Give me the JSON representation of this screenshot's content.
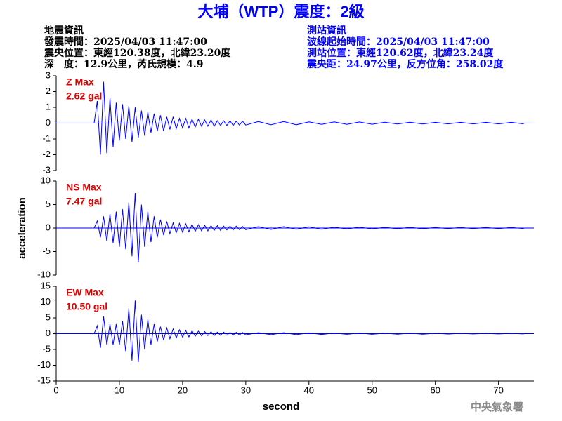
{
  "header": {
    "title": "大埔（WTP）震度：2級",
    "left": [
      "地震資訊",
      "發震時間：2025/04/03 11:47:00",
      "震央位置：東經120.38度，北緯23.20度",
      "深　度：12.9公里，芮氏規模：4.9"
    ],
    "right": [
      "測站資訊",
      "波線起始時間：2025/04/03 11:47:00",
      "測站位置：東經120.62度，北緯23.24度",
      "震央距：24.97公里，反方位角：258.02度"
    ],
    "footer": "中央氣象署"
  },
  "chart_data": [
    {
      "type": "line",
      "annotations": [
        "Z Max",
        "2.62 gal"
      ],
      "x": [
        0,
        6,
        6.5,
        7,
        7.5,
        8,
        8.5,
        9,
        9.5,
        10,
        10.5,
        11,
        11.5,
        12,
        12.5,
        13,
        13.5,
        14,
        14.5,
        15,
        15.5,
        16,
        16.5,
        17,
        17.5,
        18,
        18.5,
        19,
        19.5,
        20,
        20.5,
        21,
        21.5,
        22,
        22.5,
        23,
        23.5,
        24,
        24.5,
        25,
        25.5,
        26,
        26.5,
        27,
        27.5,
        28,
        28.5,
        29,
        29.5,
        30,
        32,
        34,
        36,
        38,
        40,
        42,
        44,
        46,
        48,
        50,
        52,
        54,
        56,
        58,
        60,
        62,
        64,
        66,
        68,
        70,
        72,
        74
      ],
      "series": [
        {
          "color": "#0000ff",
          "values": [
            0,
            0,
            1.4,
            -2.0,
            2.62,
            -1.9,
            1.6,
            -1.5,
            1.3,
            -1.1,
            1.2,
            -1.0,
            1.1,
            -1.2,
            1.0,
            -0.9,
            0.8,
            -0.8,
            0.7,
            -0.6,
            0.6,
            -0.5,
            0.5,
            -0.5,
            0.4,
            -0.4,
            0.4,
            -0.35,
            0.3,
            -0.3,
            0.3,
            -0.3,
            0.25,
            -0.25,
            0.25,
            -0.2,
            0.2,
            -0.2,
            0.2,
            -0.2,
            0.15,
            -0.15,
            0.15,
            -0.15,
            0.15,
            -0.15,
            0.12,
            -0.12,
            0.12,
            -0.12,
            0.1,
            -0.1,
            0.1,
            -0.1,
            0.08,
            -0.08,
            0.08,
            -0.08,
            0.07,
            -0.07,
            0.06,
            -0.06,
            0.06,
            -0.06,
            0.05,
            -0.05,
            0.05,
            -0.05,
            0.05,
            -0.05,
            0.05,
            -0.05
          ]
        }
      ],
      "xlim": [
        0,
        75.6
      ],
      "ylim": [
        -3,
        3
      ],
      "yticks": [
        -3,
        -2,
        -1,
        0,
        1,
        2,
        3
      ]
    },
    {
      "type": "line",
      "annotations": [
        "NS Max",
        "7.47 gal"
      ],
      "ylabel": "acceleration",
      "x": [
        0,
        6,
        6.5,
        7,
        7.5,
        8,
        8.5,
        9,
        9.5,
        10,
        10.5,
        11,
        11.5,
        12,
        12.5,
        13,
        13.5,
        14,
        14.5,
        15,
        15.5,
        16,
        16.5,
        17,
        17.5,
        18,
        18.5,
        19,
        19.5,
        20,
        20.5,
        21,
        21.5,
        22,
        22.5,
        23,
        23.5,
        24,
        24.5,
        25,
        25.5,
        26,
        26.5,
        27,
        27.5,
        28,
        28.5,
        29,
        29.5,
        30,
        32,
        34,
        36,
        38,
        40,
        42,
        44,
        46,
        48,
        50,
        52,
        54,
        56,
        58,
        60,
        62,
        64,
        66,
        68,
        70,
        72,
        74
      ],
      "series": [
        {
          "color": "#0000ff",
          "values": [
            0,
            0,
            1.5,
            -2.0,
            2.5,
            -2.8,
            3.0,
            -3.2,
            3.5,
            -4.0,
            4.0,
            -4.5,
            5.5,
            -6.0,
            7.47,
            -7.3,
            5.0,
            -4.0,
            3.5,
            -3.0,
            2.5,
            -2.0,
            1.8,
            -1.5,
            1.4,
            -1.2,
            1.1,
            -1.0,
            1.0,
            -0.9,
            0.9,
            -0.8,
            0.8,
            -0.7,
            0.7,
            -0.6,
            0.6,
            -0.6,
            0.5,
            -0.5,
            0.5,
            -0.5,
            0.4,
            -0.4,
            0.4,
            -0.4,
            0.4,
            -0.35,
            0.35,
            -0.35,
            0.3,
            -0.3,
            0.3,
            -0.25,
            0.25,
            -0.25,
            0.2,
            -0.2,
            0.2,
            -0.2,
            0.15,
            -0.15,
            0.15,
            -0.15,
            0.12,
            -0.12,
            0.1,
            -0.1,
            0.1,
            -0.1,
            0.1,
            -0.1
          ]
        }
      ],
      "xlim": [
        0,
        75.6
      ],
      "ylim": [
        -10,
        10
      ],
      "yticks": [
        -10,
        -5,
        0,
        5,
        10
      ]
    },
    {
      "type": "line",
      "annotations": [
        "EW Max",
        "10.50 gal"
      ],
      "xlabel": "second",
      "x": [
        0,
        6,
        6.5,
        7,
        7.5,
        8,
        8.5,
        9,
        9.5,
        10,
        10.5,
        11,
        11.5,
        12,
        12.5,
        13,
        13.5,
        14,
        14.5,
        15,
        15.5,
        16,
        16.5,
        17,
        17.5,
        18,
        18.5,
        19,
        19.5,
        20,
        20.5,
        21,
        21.5,
        22,
        22.5,
        23,
        23.5,
        24,
        24.5,
        25,
        25.5,
        26,
        26.5,
        27,
        27.5,
        28,
        28.5,
        29,
        29.5,
        30,
        32,
        34,
        36,
        38,
        40,
        42,
        44,
        46,
        48,
        50,
        52,
        54,
        56,
        58,
        60,
        62,
        64,
        66,
        68,
        70,
        72,
        74
      ],
      "series": [
        {
          "color": "#0000ff",
          "values": [
            0,
            0,
            2.5,
            -4.5,
            5.5,
            -3.5,
            3.0,
            -3.5,
            3.0,
            -3.5,
            4.0,
            -5.5,
            8.0,
            -8.5,
            10.5,
            -9.0,
            6.0,
            -5.0,
            4.5,
            -3.5,
            3.0,
            -2.5,
            2.2,
            -2.0,
            1.8,
            -1.6,
            1.5,
            -1.3,
            1.2,
            -1.1,
            1.0,
            -1.0,
            0.9,
            -0.8,
            0.8,
            -0.7,
            0.7,
            -0.6,
            0.6,
            -0.6,
            0.5,
            -0.5,
            0.5,
            -0.5,
            0.4,
            -0.4,
            0.4,
            -0.4,
            0.35,
            -0.35,
            0.3,
            -0.3,
            0.3,
            -0.3,
            0.25,
            -0.25,
            0.2,
            -0.2,
            0.2,
            -0.2,
            0.15,
            -0.15,
            0.15,
            -0.15,
            0.12,
            -0.12,
            0.1,
            -0.1,
            0.1,
            -0.1,
            0.1,
            -0.1
          ]
        }
      ],
      "xlim": [
        0,
        75.6
      ],
      "ylim": [
        -15,
        15
      ],
      "yticks": [
        -15,
        -10,
        -5,
        0,
        5,
        10,
        15
      ],
      "xticks": [
        0,
        10,
        20,
        30,
        40,
        50,
        60,
        70
      ]
    }
  ]
}
